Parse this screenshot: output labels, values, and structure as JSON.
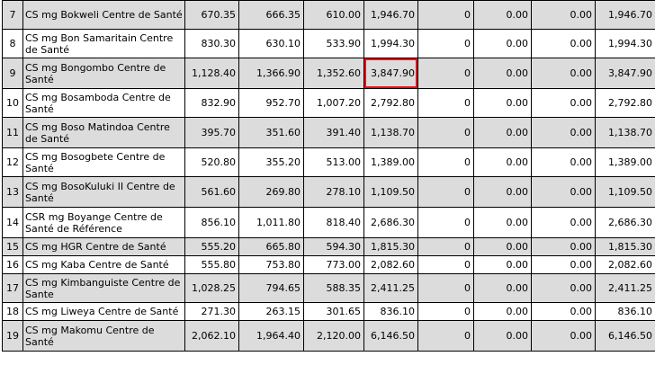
{
  "highlight_color": "#e8101a",
  "rows": [
    {
      "idx": "7",
      "name": "CS mg Bokweli Centre de Santé",
      "c1": "670.35",
      "c2": "666.35",
      "c3": "610.00",
      "c4": "1,946.70",
      "c5": "0",
      "c6": "0.00",
      "c7": "0.00",
      "c8": "1,946.70",
      "shaded": true
    },
    {
      "idx": "8",
      "name": "CS mg Bon Samaritain Centre de Santé",
      "c1": "830.30",
      "c2": "630.10",
      "c3": "533.90",
      "c4": "1,994.30",
      "c5": "0",
      "c6": "0.00",
      "c7": "0.00",
      "c8": "1,994.30",
      "shaded": false
    },
    {
      "idx": "9",
      "name": "CS mg Bongombo Centre de Santé",
      "c1": "1,128.40",
      "c2": "1,366.90",
      "c3": "1,352.60",
      "c4": "3,847.90",
      "c5": "0",
      "c6": "0.00",
      "c7": "0.00",
      "c8": "3,847.90",
      "shaded": true,
      "highlight": "c4"
    },
    {
      "idx": "10",
      "name": "CS mg Bosamboda Centre de Santé",
      "c1": "832.90",
      "c2": "952.70",
      "c3": "1,007.20",
      "c4": "2,792.80",
      "c5": "0",
      "c6": "0.00",
      "c7": "0.00",
      "c8": "2,792.80",
      "shaded": false
    },
    {
      "idx": "11",
      "name": "CS mg Boso Matindoa Centre de Santé",
      "c1": "395.70",
      "c2": "351.60",
      "c3": "391.40",
      "c4": "1,138.70",
      "c5": "0",
      "c6": "0.00",
      "c7": "0.00",
      "c8": "1,138.70",
      "shaded": true
    },
    {
      "idx": "12",
      "name": "CS mg Bosogbete Centre de Santé",
      "c1": "520.80",
      "c2": "355.20",
      "c3": "513.00",
      "c4": "1,389.00",
      "c5": "0",
      "c6": "0.00",
      "c7": "0.00",
      "c8": "1,389.00",
      "shaded": false
    },
    {
      "idx": "13",
      "name": "CS mg BosoKuluki II Centre de Santé",
      "c1": "561.60",
      "c2": "269.80",
      "c3": "278.10",
      "c4": "1,109.50",
      "c5": "0",
      "c6": "0.00",
      "c7": "0.00",
      "c8": "1,109.50",
      "shaded": true
    },
    {
      "idx": "14",
      "name": "CSR mg Boyange Centre de Santé de Référence",
      "c1": "856.10",
      "c2": "1,011.80",
      "c3": "818.40",
      "c4": "2,686.30",
      "c5": "0",
      "c6": "0.00",
      "c7": "0.00",
      "c8": "2,686.30",
      "shaded": false
    },
    {
      "idx": "15",
      "name": "CS mg HGR Centre de Santé",
      "c1": "555.20",
      "c2": "665.80",
      "c3": "594.30",
      "c4": "1,815.30",
      "c5": "0",
      "c6": "0.00",
      "c7": "0.00",
      "c8": "1,815.30",
      "shaded": true
    },
    {
      "idx": "16",
      "name": "CS mg Kaba Centre de Santé",
      "c1": "555.80",
      "c2": "753.80",
      "c3": "773.00",
      "c4": "2,082.60",
      "c5": "0",
      "c6": "0.00",
      "c7": "0.00",
      "c8": "2,082.60",
      "shaded": false
    },
    {
      "idx": "17",
      "name": "CS mg Kimbanguiste Centre de Sante",
      "c1": "1,028.25",
      "c2": "794.65",
      "c3": "588.35",
      "c4": "2,411.25",
      "c5": "0",
      "c6": "0.00",
      "c7": "0.00",
      "c8": "2,411.25",
      "shaded": true
    },
    {
      "idx": "18",
      "name": "CS mg Liweya Centre de Santé",
      "c1": "271.30",
      "c2": "263.15",
      "c3": "301.65",
      "c4": "836.10",
      "c5": "0",
      "c6": "0.00",
      "c7": "0.00",
      "c8": "836.10",
      "shaded": false
    },
    {
      "idx": "19",
      "name": "CS mg Makomu Centre de Santé",
      "c1": "2,062.10",
      "c2": "1,964.40",
      "c3": "2,120.00",
      "c4": "6,146.50",
      "c5": "0",
      "c6": "0.00",
      "c7": "0.00",
      "c8": "6,146.50",
      "shaded": true
    }
  ]
}
